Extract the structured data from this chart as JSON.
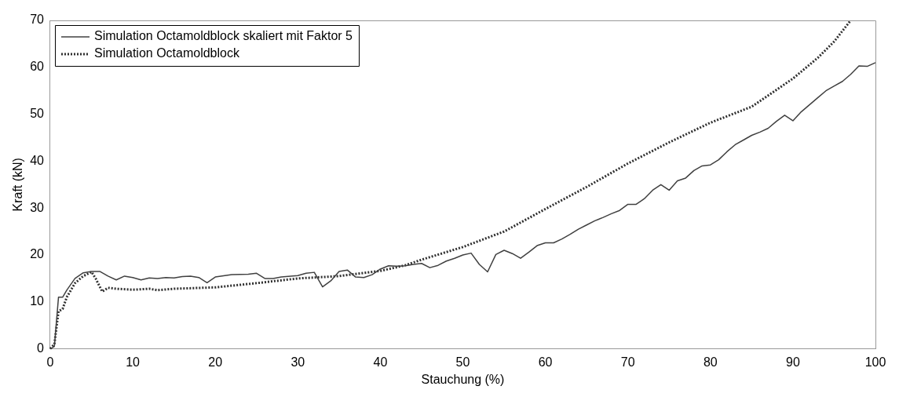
{
  "chart_data": {
    "type": "line",
    "xlabel": "Stauchung (%)",
    "ylabel": "Kraft (kN)",
    "xlim": [
      0,
      100
    ],
    "ylim": [
      0,
      70
    ],
    "xticks": [
      0,
      10,
      20,
      30,
      40,
      50,
      60,
      70,
      80,
      90,
      100
    ],
    "yticks": [
      0,
      10,
      20,
      30,
      40,
      50,
      60,
      70
    ],
    "grid": false,
    "legend": "top left",
    "series": [
      {
        "name": "Simulation Octamoldblock skaliert mit Faktor 5",
        "color": "#404040",
        "line_style": "solid",
        "x": [
          0,
          0.5,
          1,
          1.5,
          2,
          3,
          4,
          5,
          6,
          7,
          8,
          9,
          10,
          11,
          12,
          13,
          14,
          15,
          16,
          17,
          18,
          19,
          20,
          22,
          24,
          25,
          26,
          27,
          28,
          30,
          31,
          32,
          33,
          34,
          35,
          36,
          37,
          38,
          39,
          40,
          41,
          42,
          43,
          44,
          45,
          46,
          47,
          48,
          49,
          50,
          51,
          52,
          53,
          54,
          55,
          56,
          57,
          58,
          59,
          60,
          61,
          62,
          63,
          64,
          65,
          66,
          67,
          68,
          69,
          70,
          71,
          72,
          73,
          74,
          75,
          76,
          77,
          78,
          79,
          80,
          81,
          82,
          83,
          84,
          85,
          86,
          87,
          88,
          89,
          90,
          91,
          92,
          93,
          94,
          95,
          96,
          97,
          98,
          99,
          100
        ],
        "values": [
          0,
          0.5,
          11,
          11,
          12.5,
          15,
          16.2,
          16.5,
          16.5,
          15.5,
          14.7,
          15.5,
          15.2,
          14.7,
          15.1,
          15,
          15.2,
          15.1,
          15.4,
          15.5,
          15.2,
          14.1,
          15.3,
          15.8,
          15.9,
          16.1,
          15,
          15,
          15.3,
          15.6,
          16.1,
          16.3,
          13.2,
          14.5,
          16.5,
          16.8,
          15.3,
          15.2,
          15.8,
          17,
          17.7,
          17.6,
          17.7,
          18,
          18.2,
          17.3,
          17.8,
          18.7,
          19.3,
          20,
          20.4,
          18,
          16.4,
          20.1,
          21,
          20.3,
          19.3,
          20.6,
          22,
          22.6,
          22.6,
          23.4,
          24.4,
          25.5,
          26.4,
          27.3,
          28,
          28.8,
          29.5,
          30.8,
          30.8,
          32,
          33.8,
          35,
          33.8,
          35.8,
          36.4,
          38,
          39,
          39.2,
          40.3,
          42,
          43.5,
          44.5,
          45.5,
          46.2,
          47,
          48.5,
          49.8,
          48.6,
          50.5,
          52,
          53.5,
          55,
          56,
          57,
          58.5,
          60.3,
          60.2,
          61
        ]
      },
      {
        "name": "Simulation Octamoldblock",
        "color": "#303030",
        "line_style": "dotted",
        "x": [
          0,
          0.5,
          1,
          1.5,
          2,
          3,
          4,
          5,
          5.5,
          6.3,
          7,
          8,
          10,
          12,
          13,
          15,
          20,
          25,
          30,
          35,
          40,
          43,
          45,
          50,
          55,
          60,
          65,
          70,
          75,
          80,
          85,
          90,
          93,
          95,
          97
        ],
        "values": [
          0,
          1,
          8,
          8.5,
          11,
          14,
          15.5,
          16.4,
          15,
          12.2,
          13,
          12.8,
          12.6,
          12.8,
          12.5,
          12.8,
          13.1,
          14,
          15,
          15.5,
          16.6,
          17.8,
          19,
          21.7,
          25,
          29.8,
          34.5,
          39.5,
          44,
          48.2,
          51.6,
          57.6,
          62,
          65.5,
          70
        ]
      }
    ]
  }
}
